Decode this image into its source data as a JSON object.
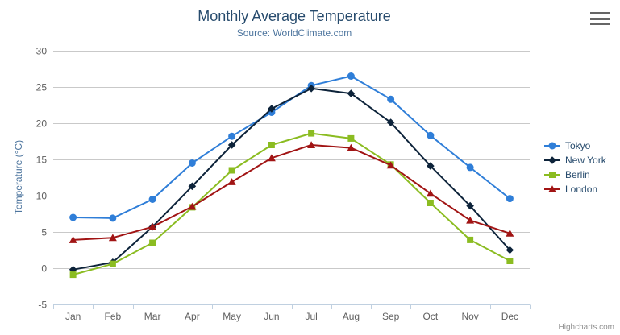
{
  "chart": {
    "title": "Monthly Average Temperature",
    "subtitle": "Source: WorldClimate.com",
    "credits": "Highcharts.com",
    "menu_icon": "hamburger-menu-icon",
    "colors": {
      "title_text": "#274b6d",
      "subtitle_text": "#4d759e",
      "axis_label_text": "#606060",
      "grid_line": "#c9c9c9",
      "axis_line": "#c0d0e0",
      "legend_text": "#274b6d",
      "credits_text": "#909090"
    }
  },
  "chart_data": {
    "type": "line",
    "title": "Monthly Average Temperature",
    "subtitle": "Source: WorldClimate.com",
    "categories": [
      "Jan",
      "Feb",
      "Mar",
      "Apr",
      "May",
      "Jun",
      "Jul",
      "Aug",
      "Sep",
      "Oct",
      "Nov",
      "Dec"
    ],
    "series": [
      {
        "name": "Tokyo",
        "color": "#2f7ed8",
        "marker": "circle",
        "values": [
          7.0,
          6.9,
          9.5,
          14.5,
          18.2,
          21.5,
          25.2,
          26.5,
          23.3,
          18.3,
          13.9,
          9.6
        ]
      },
      {
        "name": "New York",
        "color": "#0d233a",
        "marker": "diamond",
        "values": [
          -0.2,
          0.8,
          5.7,
          11.3,
          17.0,
          22.0,
          24.8,
          24.1,
          20.1,
          14.1,
          8.6,
          2.5
        ]
      },
      {
        "name": "Berlin",
        "color": "#8bbc21",
        "marker": "square",
        "values": [
          -0.9,
          0.6,
          3.5,
          8.4,
          13.5,
          17.0,
          18.6,
          17.9,
          14.3,
          9.0,
          3.9,
          1.0
        ]
      },
      {
        "name": "London",
        "color": "#a11414",
        "marker": "triangle",
        "values": [
          3.9,
          4.2,
          5.7,
          8.5,
          11.9,
          15.2,
          17.0,
          16.6,
          14.2,
          10.3,
          6.6,
          4.8
        ]
      }
    ],
    "xlabel": "",
    "ylabel": "Temperature (°C)",
    "ylim": [
      -5,
      30
    ],
    "ytick_step": 5,
    "grid": true,
    "legend_position": "right"
  }
}
